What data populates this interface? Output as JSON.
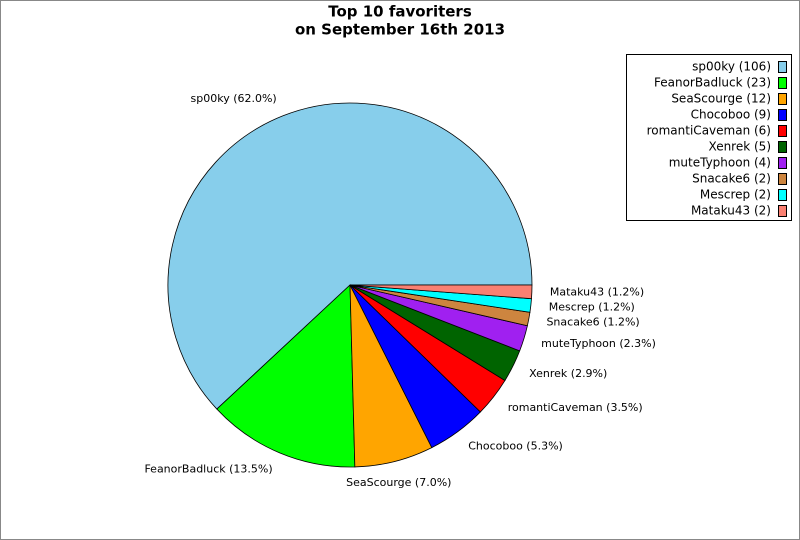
{
  "chart_data": {
    "type": "pie",
    "title": "Top 10 favoriters",
    "subtitle": "on September 16th 2013",
    "categories": [
      "sp00ky (106)",
      "FeanorBadluck (23)",
      "SeaScourge (12)",
      "Chocoboo (9)",
      "romantiCaveman (6)",
      "Xenrek (5)",
      "muteTyphoon (4)",
      "Snacake6 (2)",
      "Mescrep (2)",
      "Mataku43 (2)"
    ],
    "values": [
      62.0,
      13.5,
      7.0,
      5.3,
      3.5,
      2.9,
      2.3,
      1.2,
      1.2,
      1.2
    ],
    "value_labels": [
      "sp00ky (62.0%)",
      "FeanorBadluck (13.5%)",
      "SeaScourge (7.0%)",
      "Chocoboo (5.3%)",
      "romantiCaveman (3.5%)",
      "Xenrek (2.9%)",
      "muteTyphoon (2.3%)",
      "Snacake6 (1.2%)",
      "Mescrep (1.2%)",
      "Mataku43 (1.2%)"
    ],
    "colors": [
      "#87ceeb",
      "#00ff00",
      "#ffa500",
      "#0000ff",
      "#ff0000",
      "#006400",
      "#a020f0",
      "#cd853f",
      "#00ffff",
      "#fa8072"
    ],
    "legend": "top-right"
  }
}
